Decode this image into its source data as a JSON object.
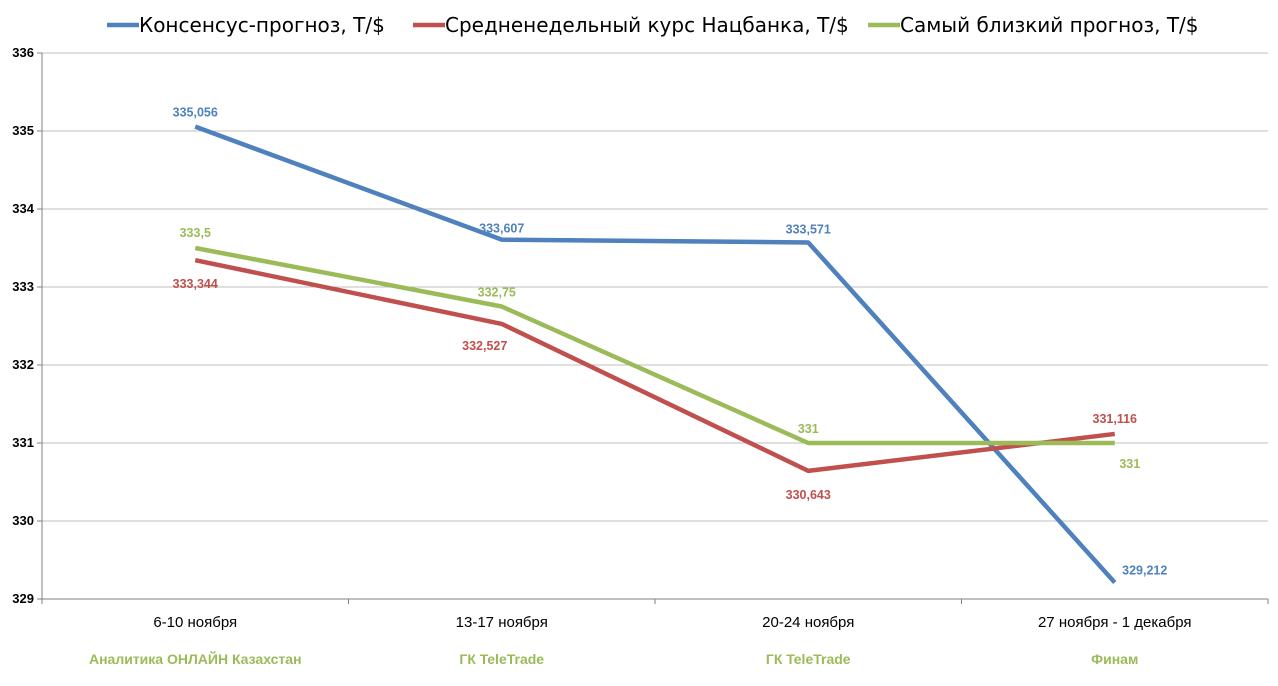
{
  "chart_data": {
    "type": "line",
    "categories": [
      "6-10 ноября",
      "13-17 ноября",
      "20-24 ноября",
      "27 ноября - 1 декабря"
    ],
    "sublabels": [
      "Аналитика ОНЛАЙН Казахстан",
      "ГК TeleTrade",
      "ГК TeleTrade",
      "Финам"
    ],
    "sublabel_color": "#9BBB59",
    "series": [
      {
        "name": "Консенсус-прогноз,  Т/$",
        "color": "#4F81BD",
        "values": [
          335.056,
          333.607,
          333.571,
          329.212
        ],
        "labels": [
          "335,056",
          "333,607",
          "333,571",
          "329,212"
        ]
      },
      {
        "name": "Средненедельный  курс Нацбанка, Т/$",
        "color": "#C0504D",
        "values": [
          333.344,
          332.527,
          330.643,
          331.116
        ],
        "labels": [
          "333,344",
          "332,527",
          "330,643",
          "331,116"
        ]
      },
      {
        "name": "Самый близкий прогноз, Т/$",
        "color": "#9BBB59",
        "values": [
          333.5,
          332.75,
          331,
          331
        ],
        "labels": [
          "333,5",
          "332,75",
          "331",
          "331"
        ]
      }
    ],
    "yticks": [
      "329",
      "330",
      "331",
      "332",
      "333",
      "334",
      "335",
      "336"
    ],
    "ylim": [
      329,
      336
    ],
    "grid": true,
    "legend": "top"
  }
}
